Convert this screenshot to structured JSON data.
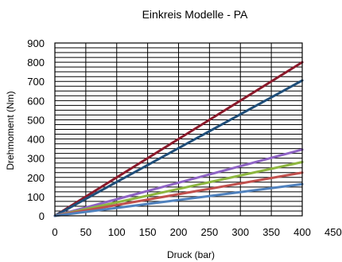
{
  "chart_data": {
    "type": "line",
    "title": "Einkreis Modelle - PA",
    "xlabel": "Druck (bar)",
    "ylabel": "Drehmoment (Nm)",
    "xlim": [
      0,
      450
    ],
    "ylim": [
      0,
      900
    ],
    "x_ticks": [
      0,
      50,
      100,
      150,
      200,
      250,
      300,
      350,
      400,
      450
    ],
    "y_ticks": [
      0,
      100,
      200,
      300,
      400,
      500,
      600,
      700,
      800,
      900
    ],
    "grid": true,
    "series": [
      {
        "color": "#8B1A2B",
        "points": [
          [
            0,
            0
          ],
          [
            400,
            800
          ]
        ]
      },
      {
        "color": "#1F4E79",
        "points": [
          [
            0,
            0
          ],
          [
            400,
            705
          ]
        ]
      },
      {
        "color": "#8E63C4",
        "points": [
          [
            0,
            0
          ],
          [
            400,
            345
          ]
        ]
      },
      {
        "color": "#8DB63F",
        "points": [
          [
            0,
            0
          ],
          [
            400,
            280
          ]
        ]
      },
      {
        "color": "#C0504D",
        "points": [
          [
            0,
            0
          ],
          [
            400,
            225
          ]
        ]
      },
      {
        "color": "#4F81BD",
        "points": [
          [
            0,
            0
          ],
          [
            400,
            165
          ]
        ]
      }
    ]
  }
}
